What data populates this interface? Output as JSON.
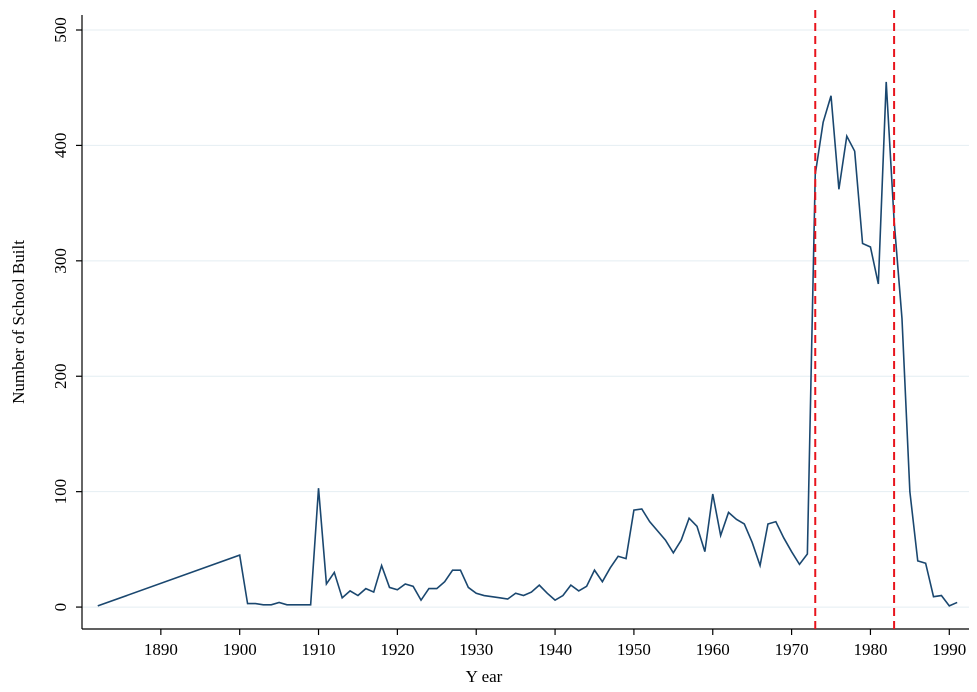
{
  "chart_data": {
    "type": "line",
    "xlabel": "Y ear",
    "ylabel": "Number of School Built",
    "x": [
      1882,
      1900,
      1901,
      1902,
      1903,
      1904,
      1905,
      1906,
      1907,
      1908,
      1909,
      1910,
      1911,
      1912,
      1913,
      1914,
      1915,
      1916,
      1917,
      1918,
      1919,
      1920,
      1921,
      1922,
      1923,
      1924,
      1925,
      1926,
      1927,
      1928,
      1929,
      1930,
      1931,
      1932,
      1933,
      1934,
      1935,
      1936,
      1937,
      1938,
      1939,
      1940,
      1941,
      1942,
      1943,
      1944,
      1945,
      1946,
      1947,
      1948,
      1949,
      1950,
      1951,
      1952,
      1953,
      1954,
      1955,
      1956,
      1957,
      1958,
      1959,
      1960,
      1961,
      1962,
      1963,
      1964,
      1965,
      1966,
      1967,
      1968,
      1969,
      1970,
      1971,
      1972,
      1973,
      1974,
      1975,
      1976,
      1977,
      1978,
      1979,
      1980,
      1981,
      1982,
      1983,
      1984,
      1985,
      1986,
      1987,
      1988,
      1989,
      1990,
      1991
    ],
    "series": [
      {
        "name": "Number of School Built",
        "color": "#1a476f",
        "values": [
          1,
          45,
          3,
          3,
          2,
          2,
          4,
          2,
          2,
          2,
          2,
          103,
          20,
          30,
          8,
          14,
          10,
          16,
          13,
          36,
          17,
          15,
          20,
          18,
          6,
          16,
          16,
          22,
          32,
          32,
          17,
          12,
          10,
          9,
          8,
          7,
          12,
          10,
          13,
          19,
          12,
          6,
          10,
          19,
          14,
          18,
          32,
          22,
          34,
          44,
          42,
          84,
          85,
          74,
          66,
          58,
          47,
          58,
          77,
          70,
          48,
          98,
          62,
          82,
          76,
          72,
          56,
          36,
          72,
          74,
          60,
          48,
          37,
          46,
          375,
          420,
          443,
          362,
          408,
          395,
          315,
          312,
          280,
          455,
          335,
          250,
          100,
          40,
          38,
          9,
          10,
          1,
          4
        ]
      }
    ],
    "xlim": [
      1880,
      1992.5
    ],
    "xticks": [
      1890,
      1900,
      1910,
      1920,
      1930,
      1940,
      1950,
      1960,
      1970,
      1980,
      1990
    ],
    "ylim": [
      -19,
      513
    ],
    "yticks": [
      0,
      100,
      200,
      300,
      400,
      500
    ],
    "grid": true,
    "vlines": [
      1973,
      1983
    ],
    "vline_color": "#e8141c"
  }
}
